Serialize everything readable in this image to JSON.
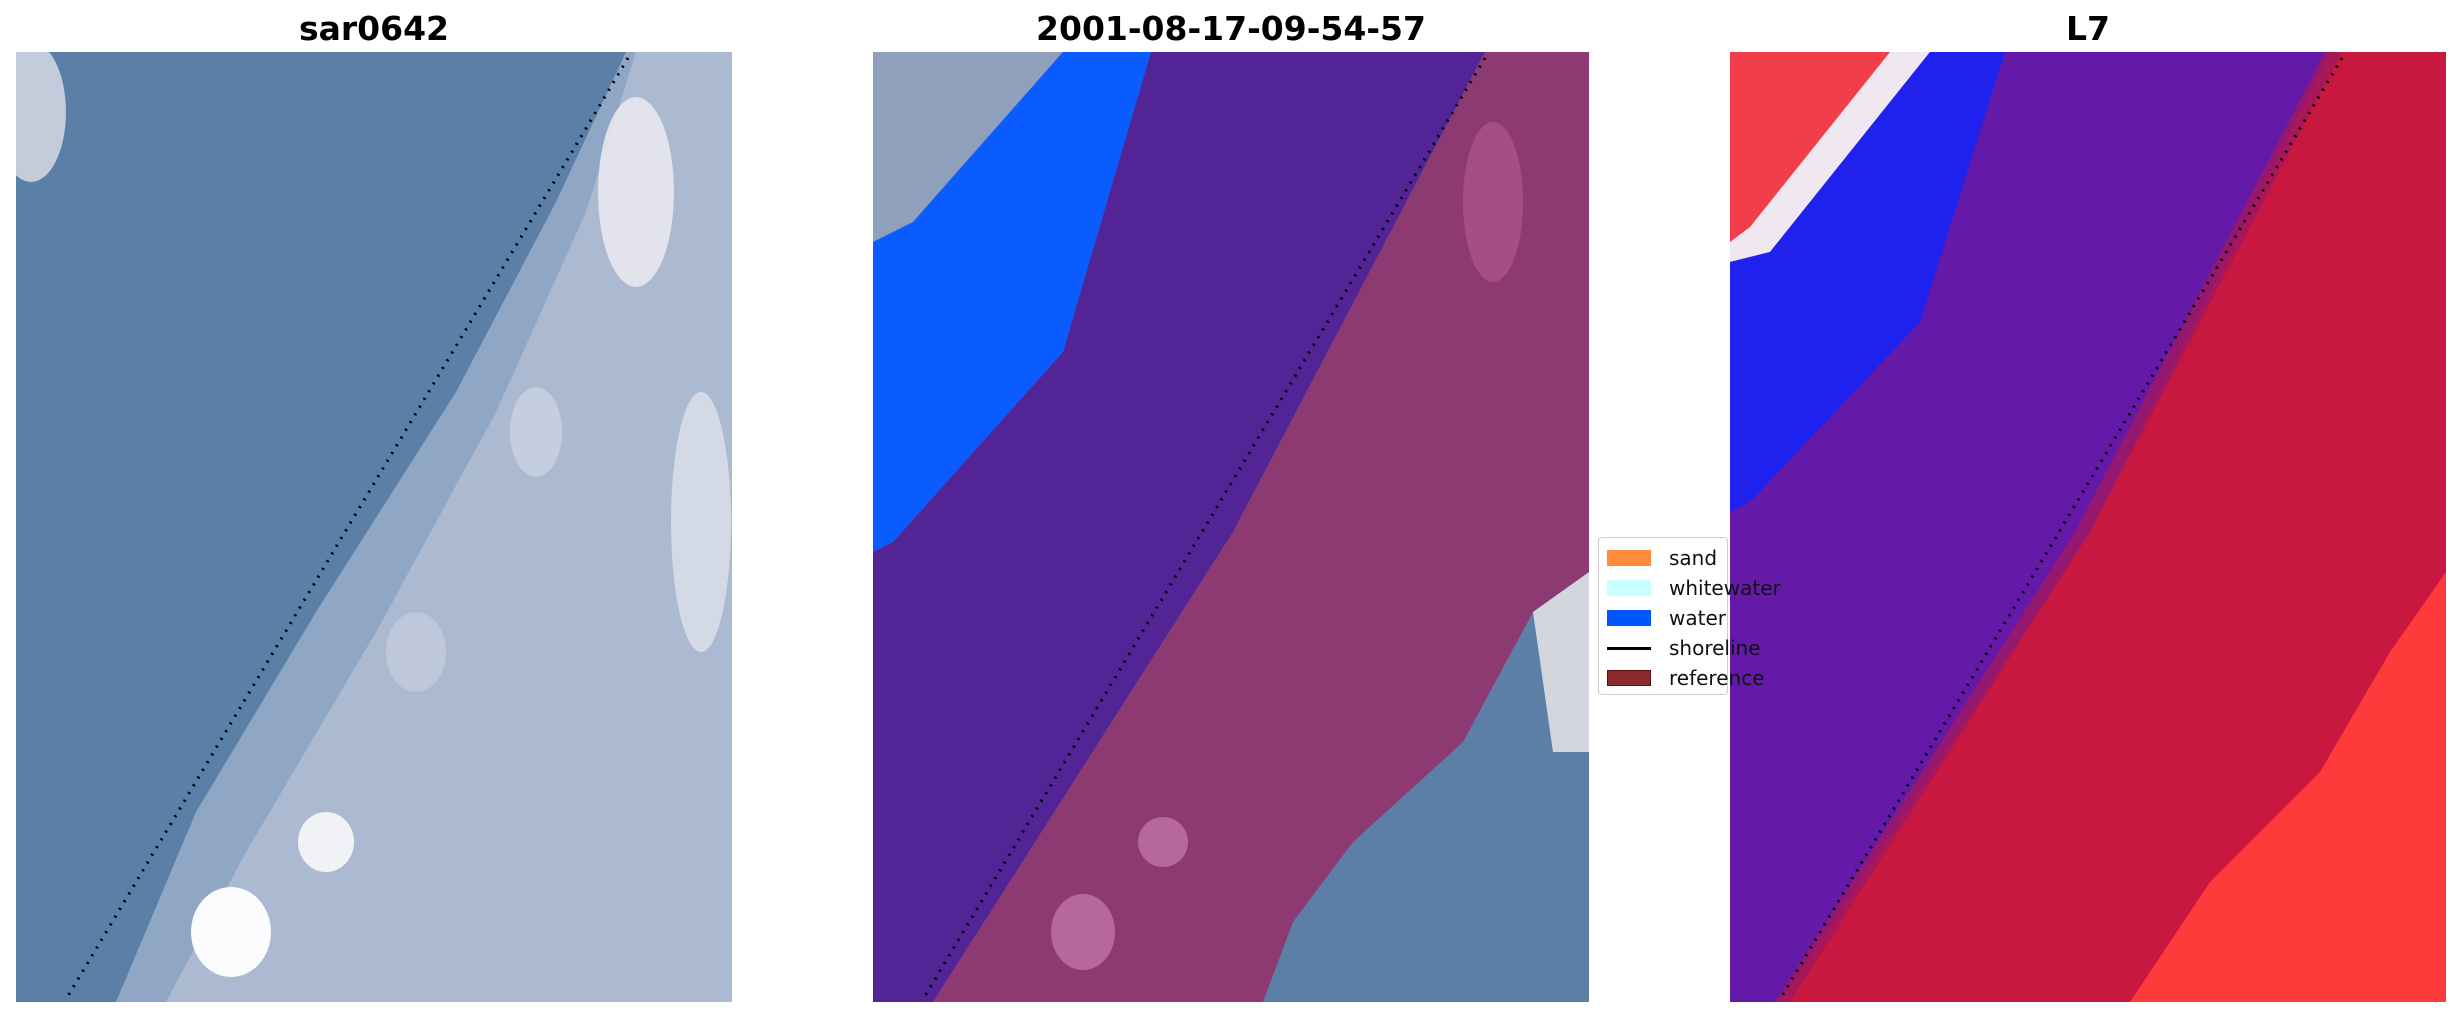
{
  "panels": [
    {
      "title": "sar0642"
    },
    {
      "title": "2001-08-17-09-54-57"
    },
    {
      "title": "L7"
    }
  ],
  "legend": {
    "items": [
      {
        "label": "sand",
        "color": "#ff8c3a",
        "kind": "box"
      },
      {
        "label": "whitewater",
        "color": "#c8ffff",
        "kind": "box"
      },
      {
        "label": "water",
        "color": "#0055ff",
        "kind": "box"
      },
      {
        "label": "shoreline",
        "color": "#000000",
        "kind": "line"
      },
      {
        "label": "reference",
        "color": "#8b2a2a",
        "kind": "box"
      }
    ]
  },
  "colors": {
    "ocean": "#5b7fa6",
    "beach": "#b9bfd0",
    "purple_class": "#522495",
    "beach_overlay": "#8e3a72",
    "water_class": "#0a5cff",
    "l7_blue": "#1f22ee",
    "l7_purple": "#6419a8",
    "l7_red": "#c8183f",
    "l7_bright_red": "#ff3a3a"
  }
}
